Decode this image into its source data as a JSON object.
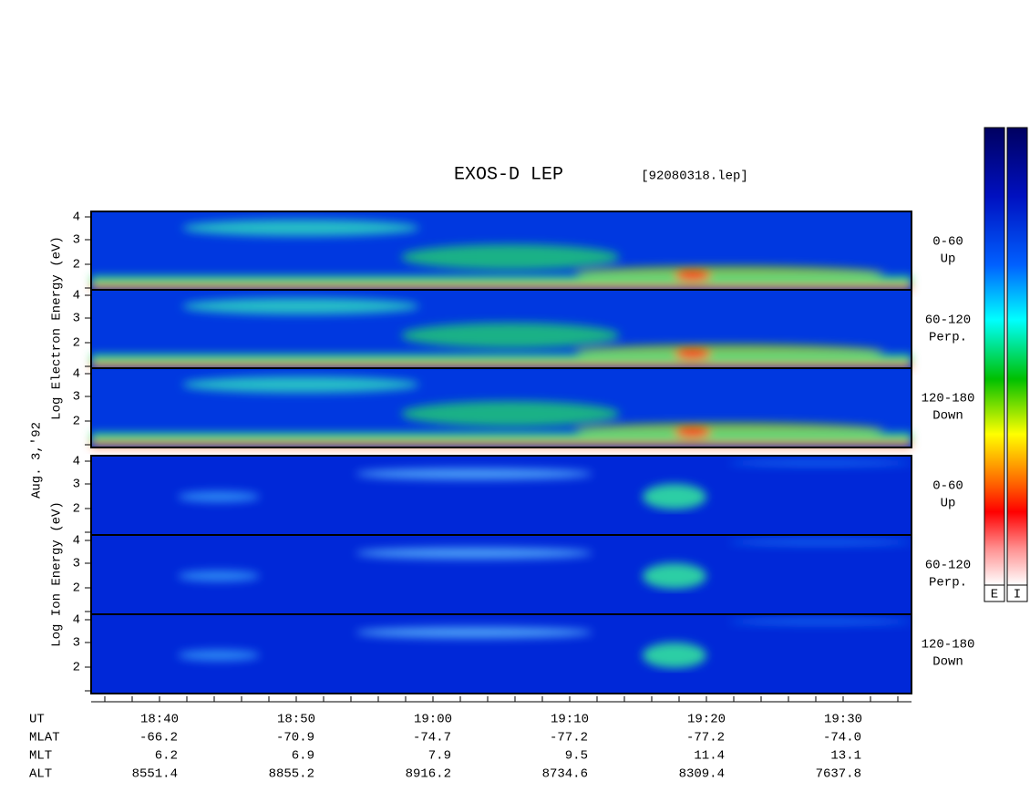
{
  "header": {
    "title": "EXOS-D LEP",
    "file": "[92080318.lep]"
  },
  "labels": {
    "electron": "Log Electron Energy (eV)",
    "date": "Aug. 3,'92",
    "ion": "Log Ion Energy (eV)"
  },
  "panels": [
    {
      "ticks": [
        "4",
        "3",
        "2"
      ],
      "angle": "0-60",
      "direction": "Up"
    },
    {
      "ticks": [
        "4",
        "3",
        "2"
      ],
      "angle": "60-120",
      "direction": "Perp."
    },
    {
      "ticks": [
        "4",
        "3",
        "2"
      ],
      "angle": "120-180",
      "direction": "Down"
    },
    {
      "ticks": [
        "4",
        "3",
        "2"
      ],
      "angle": "0-60",
      "direction": "Up"
    },
    {
      "ticks": [
        "4",
        "3",
        "2"
      ],
      "angle": "60-120",
      "direction": "Perp."
    },
    {
      "ticks": [
        "4",
        "3",
        "2"
      ],
      "angle": "120-180",
      "direction": "Down"
    }
  ],
  "time_labels": [
    "18:40",
    "18:50",
    "19:00",
    "19:10",
    "19:20",
    "19:30"
  ],
  "ephemeris": [
    {
      "name": "UT",
      "values": []
    },
    {
      "name": "MLAT",
      "values": [
        "-66.2",
        "-70.9",
        "-74.7",
        "-77.2",
        "-77.2",
        "-74.0"
      ]
    },
    {
      "name": "MLT",
      "values": [
        "6.2",
        "6.9",
        "7.9",
        "9.5",
        "11.4",
        "13.1"
      ]
    },
    {
      "name": "ALT",
      "values": [
        "8551.4",
        "8855.2",
        "8916.2",
        "8734.6",
        "8309.4",
        "7637.8"
      ]
    }
  ],
  "colorbars": [
    "E",
    "I"
  ]
}
